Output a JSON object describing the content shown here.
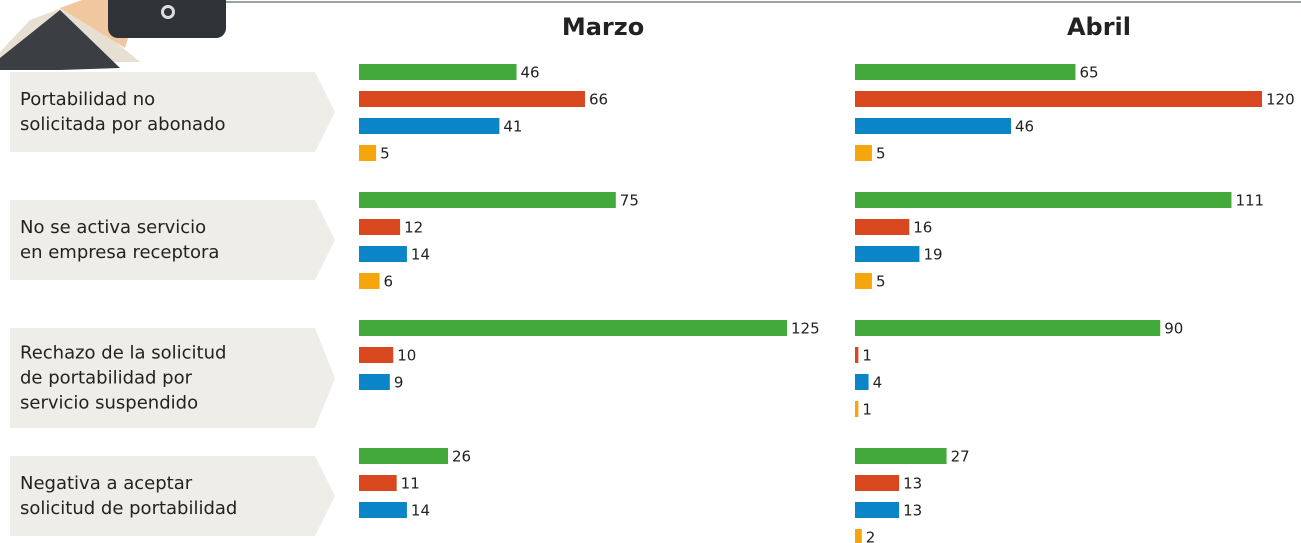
{
  "categories": [
    "Portabilidad no\nsolicitada por abonado",
    "No se activa servicio\nen empresa receptora",
    "Rechazo de la solicitud\nde portabilidad por\nservicio suspendido",
    "Negativa a aceptar\nsolicitud de portabilidad"
  ],
  "chart_data": [
    {
      "type": "bar",
      "title": "Marzo",
      "series": [
        {
          "color": "#43a93b",
          "values": [
            46,
            75,
            125,
            26
          ]
        },
        {
          "color": "#d9471f",
          "values": [
            66,
            12,
            10,
            11
          ]
        },
        {
          "color": "#0a86c8",
          "values": [
            41,
            14,
            9,
            14
          ]
        },
        {
          "color": "#f4a60c",
          "values": [
            5,
            6,
            null,
            null
          ]
        }
      ]
    },
    {
      "type": "bar",
      "title": "Abril",
      "series": [
        {
          "color": "#43a93b",
          "values": [
            65,
            111,
            90,
            27
          ]
        },
        {
          "color": "#d9471f",
          "values": [
            120,
            16,
            1,
            13
          ]
        },
        {
          "color": "#0a86c8",
          "values": [
            46,
            19,
            4,
            13
          ]
        },
        {
          "color": "#f4a60c",
          "values": [
            5,
            5,
            1,
            2
          ]
        }
      ]
    }
  ]
}
